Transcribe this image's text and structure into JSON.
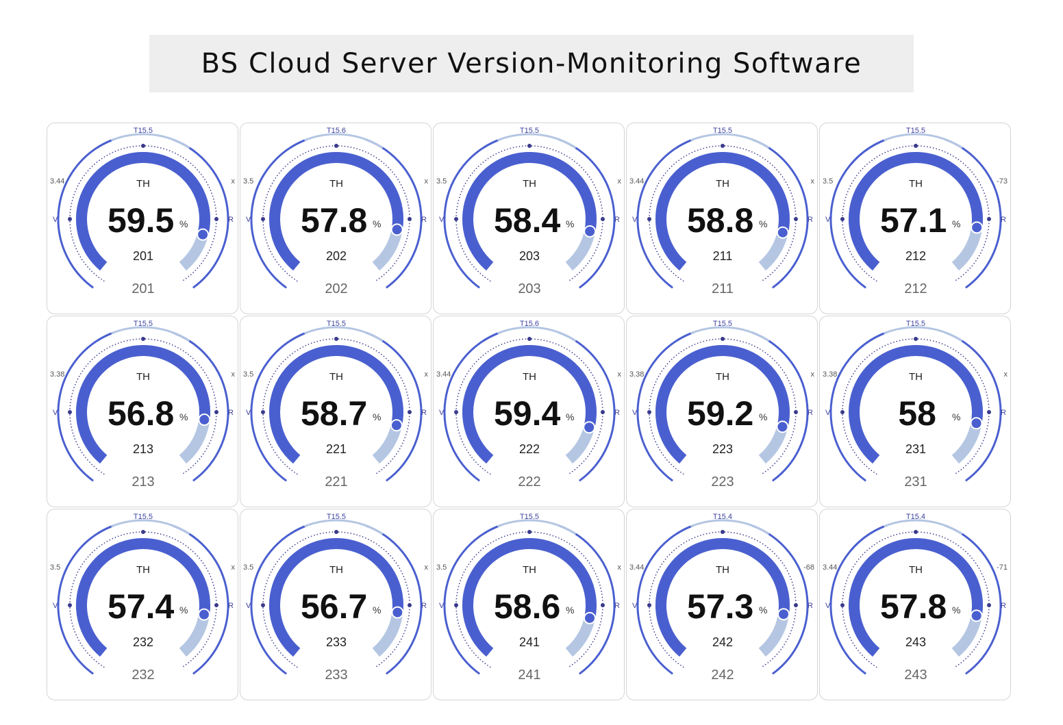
{
  "header": {
    "title": "BS Cloud Server Version-Monitoring Software"
  },
  "colors": {
    "main_arc": "#4a5fcf",
    "track_arc": "#b4c6e2",
    "outer_arc": "#4a5fcf",
    "dots": "#3a3a8c"
  },
  "gauge_labels": {
    "center": "TH",
    "unit": "%",
    "left_side": "V",
    "right_side": "R"
  },
  "gauges": [
    {
      "top": "T15.5",
      "left": "3.44",
      "right": "x",
      "value": "59.5",
      "level": 59.5,
      "inner_id": "201",
      "footer_id": "201"
    },
    {
      "top": "T15.6",
      "left": "3.5",
      "right": "x",
      "value": "57.8",
      "level": 57.8,
      "inner_id": "202",
      "footer_id": "202"
    },
    {
      "top": "T15.5",
      "left": "3.5",
      "right": "x",
      "value": "58.4",
      "level": 58.4,
      "inner_id": "203",
      "footer_id": "203"
    },
    {
      "top": "T15.5",
      "left": "3.44",
      "right": "x",
      "value": "58.8",
      "level": 58.8,
      "inner_id": "211",
      "footer_id": "211"
    },
    {
      "top": "T15.5",
      "left": "3.5",
      "right": "-73",
      "value": "57.1",
      "level": 57.1,
      "inner_id": "212",
      "footer_id": "212"
    },
    {
      "top": "T15.5",
      "left": "3.38",
      "right": "x",
      "value": "56.8",
      "level": 56.8,
      "inner_id": "213",
      "footer_id": "213"
    },
    {
      "top": "T15.5",
      "left": "3.5",
      "right": "x",
      "value": "58.7",
      "level": 58.7,
      "inner_id": "221",
      "footer_id": "221"
    },
    {
      "top": "T15.6",
      "left": "3.44",
      "right": "x",
      "value": "59.4",
      "level": 59.4,
      "inner_id": "222",
      "footer_id": "222"
    },
    {
      "top": "T15.5",
      "left": "3.38",
      "right": "x",
      "value": "59.2",
      "level": 59.2,
      "inner_id": "223",
      "footer_id": "223"
    },
    {
      "top": "T15.5",
      "left": "3.38",
      "right": "x",
      "value": "58",
      "level": 58,
      "inner_id": "231",
      "footer_id": "231"
    },
    {
      "top": "T15.5",
      "left": "3.5",
      "right": "x",
      "value": "57.4",
      "level": 57.4,
      "inner_id": "232",
      "footer_id": "232"
    },
    {
      "top": "T15.5",
      "left": "3.5",
      "right": "x",
      "value": "56.7",
      "level": 56.7,
      "inner_id": "233",
      "footer_id": "233"
    },
    {
      "top": "T15.5",
      "left": "3.5",
      "right": "x",
      "value": "58.6",
      "level": 58.6,
      "inner_id": "241",
      "footer_id": "241"
    },
    {
      "top": "T15.4",
      "left": "3.44",
      "right": "-68",
      "value": "57.3",
      "level": 57.3,
      "inner_id": "242",
      "footer_id": "242"
    },
    {
      "top": "T15.4",
      "left": "3.44",
      "right": "-71",
      "value": "57.8",
      "level": 57.8,
      "inner_id": "243",
      "footer_id": "243"
    }
  ]
}
